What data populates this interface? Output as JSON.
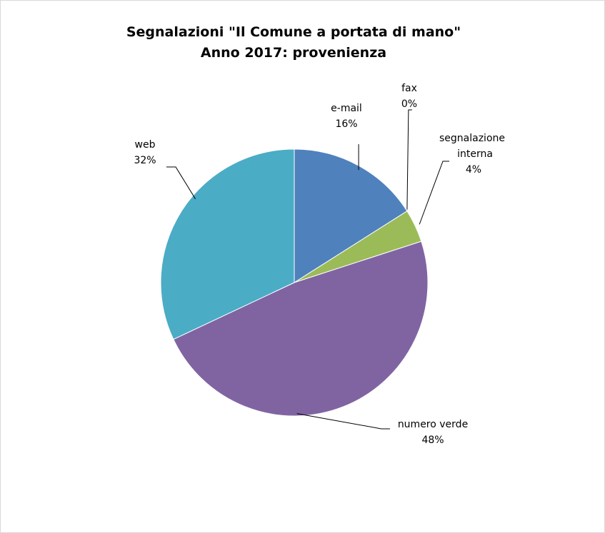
{
  "chart_data": {
    "type": "pie",
    "title": [
      "Segnalazioni \"Il Comune a portata di mano\"",
      "Anno 2017: provenienza"
    ],
    "slices": [
      {
        "name": "e-mail",
        "value": 16,
        "percent_label": "16%",
        "color": "#4F81BD"
      },
      {
        "name": "fax",
        "value": 0,
        "percent_label": "0%",
        "color": "#C0504D"
      },
      {
        "name": "segnalazione interna",
        "value": 4,
        "percent_label": "4%",
        "color": "#9BBB59"
      },
      {
        "name": "numero verde",
        "value": 48,
        "percent_label": "48%",
        "color": "#8064A2"
      },
      {
        "name": "web",
        "value": 32,
        "percent_label": "32%",
        "color": "#4BACC6"
      }
    ],
    "slice_edge_color": "#ffffff",
    "legend": "none"
  }
}
